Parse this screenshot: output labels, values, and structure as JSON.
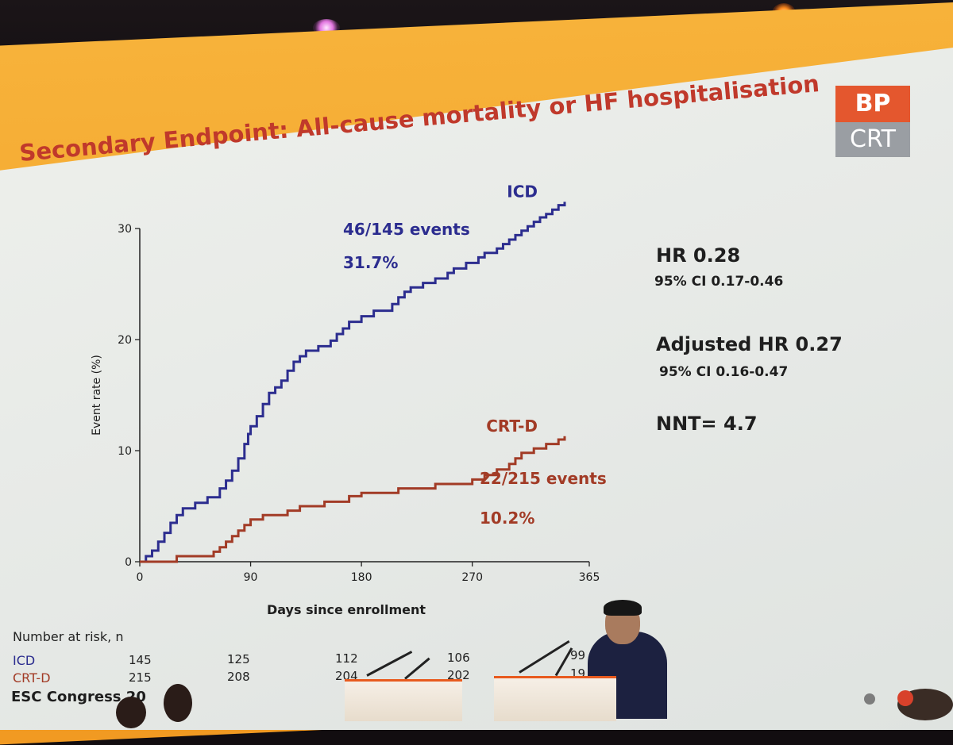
{
  "title": "Secondary Endpoint: All-cause mortality or HF hospitalisation",
  "logo": {
    "top": "BP",
    "bottom": "CRT"
  },
  "stats": {
    "hr": "HR 0.28",
    "hr_ci": "95% CI 0.17-0.46",
    "adj_hr": "Adjusted HR 0.27",
    "adj_ci": "95% CI 0.16-0.47",
    "nnt": "NNT= 4.7"
  },
  "risk_table": {
    "heading": "Number at risk, n",
    "rows": [
      {
        "label": "ICD",
        "values": [
          "145",
          "125",
          "112",
          "106",
          "99"
        ]
      },
      {
        "label": "CRT-D",
        "values": [
          "215",
          "208",
          "204",
          "202",
          "19"
        ]
      }
    ]
  },
  "footer": "ESC Congress 20",
  "chart_data": {
    "type": "line",
    "step": true,
    "xlabel": "Days since enrollment",
    "ylabel": "Event rate (%)",
    "xlim": [
      0,
      365
    ],
    "ylim": [
      0,
      30
    ],
    "x_ticks": [
      0,
      90,
      180,
      270,
      365
    ],
    "y_ticks": [
      0,
      10,
      20,
      30
    ],
    "grid": false,
    "series": [
      {
        "name": "ICD",
        "color": "#2c2d8f",
        "annotation_events": "46/145 events",
        "annotation_pct": "31.7%",
        "x": [
          0,
          5,
          10,
          15,
          20,
          25,
          30,
          35,
          45,
          55,
          65,
          70,
          75,
          80,
          85,
          88,
          90,
          95,
          100,
          105,
          110,
          115,
          120,
          125,
          130,
          135,
          145,
          155,
          160,
          165,
          170,
          180,
          190,
          205,
          210,
          215,
          220,
          230,
          240,
          250,
          255,
          265,
          275,
          280,
          290,
          295,
          300,
          305,
          310,
          315,
          320,
          325,
          330,
          335,
          340,
          345
        ],
        "y": [
          0,
          0.5,
          1,
          1.8,
          2.6,
          3.5,
          4.2,
          4.8,
          5.3,
          5.8,
          6.6,
          7.3,
          8.2,
          9.3,
          10.6,
          11.5,
          12.2,
          13.1,
          14.2,
          15.2,
          15.7,
          16.3,
          17.2,
          18.0,
          18.5,
          19.0,
          19.4,
          19.9,
          20.5,
          21.0,
          21.6,
          22.1,
          22.6,
          23.2,
          23.8,
          24.3,
          24.7,
          25.1,
          25.5,
          26.0,
          26.4,
          26.9,
          27.4,
          27.8,
          28.2,
          28.6,
          29.0,
          29.4,
          29.8,
          30.2,
          30.6,
          31.0,
          31.3,
          31.7,
          32.1,
          32.4
        ]
      },
      {
        "name": "CRT-D",
        "color": "#a23b26",
        "annotation_events": "22/215 events",
        "annotation_pct": "10.2%",
        "x": [
          0,
          30,
          60,
          65,
          70,
          75,
          80,
          85,
          90,
          100,
          120,
          130,
          150,
          170,
          180,
          210,
          240,
          270,
          280,
          290,
          300,
          305,
          310,
          320,
          330,
          340,
          345
        ],
        "y": [
          0,
          0.5,
          0.9,
          1.3,
          1.8,
          2.3,
          2.8,
          3.3,
          3.8,
          4.2,
          4.6,
          5.0,
          5.4,
          5.9,
          6.2,
          6.6,
          7.0,
          7.4,
          7.8,
          8.3,
          8.8,
          9.3,
          9.8,
          10.2,
          10.6,
          11.0,
          11.3
        ]
      }
    ]
  }
}
